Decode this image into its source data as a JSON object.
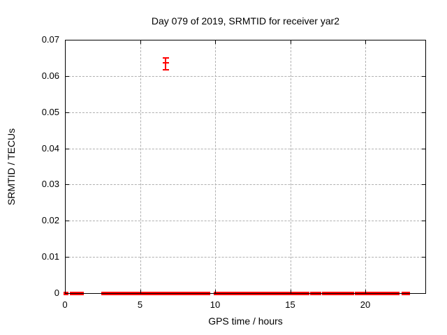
{
  "chart": {
    "title": "Day 079 of 2019, SRMTID for receiver yar2",
    "xlabel": "GPS time / hours",
    "ylabel": "SRMTID / TECUs"
  },
  "chart_data": {
    "type": "scatter",
    "style": "yerrorbars",
    "title": "Day 079 of 2019, SRMTID for receiver yar2",
    "xlabel": "GPS time / hours",
    "ylabel": "SRMTID / TECUs",
    "xlim": [
      0,
      24
    ],
    "ylim": [
      0,
      0.07
    ],
    "xticks": [
      0,
      5,
      10,
      15,
      20
    ],
    "xtick_labels": [
      "0",
      "5",
      "10",
      "15",
      "20"
    ],
    "yticks": [
      0,
      0.01,
      0.02,
      0.03,
      0.04,
      0.05,
      0.06,
      0.07
    ],
    "ytick_labels": [
      "0",
      "0.01",
      "0.02",
      "0.03",
      "0.04",
      "0.05",
      "0.06",
      "0.07"
    ],
    "grid": true,
    "grid_color": "#b0b0b0",
    "legend": "none",
    "series": [
      {
        "name": "SRMTID",
        "color": "#ff0000",
        "outlier_point": {
          "x": 6.7,
          "y": 0.0637,
          "y_low": 0.0617,
          "y_high": 0.0649
        },
        "baseline_value": 0,
        "baseline_segments_hours": [
          [
            0.0,
            0.12
          ],
          [
            0.4,
            0.65
          ],
          [
            0.85,
            0.95
          ],
          [
            1.05,
            1.15
          ],
          [
            2.5,
            2.8
          ],
          [
            2.95,
            3.2
          ],
          [
            3.3,
            3.58
          ],
          [
            3.67,
            3.82
          ],
          [
            4.0,
            4.25
          ],
          [
            4.42,
            4.6
          ],
          [
            4.65,
            4.75
          ],
          [
            4.93,
            5.02
          ],
          [
            5.12,
            5.21
          ],
          [
            5.26,
            5.58
          ],
          [
            5.67,
            5.81
          ],
          [
            5.9,
            6.19
          ],
          [
            6.28,
            6.42
          ],
          [
            6.51,
            6.88
          ],
          [
            7.07,
            7.3
          ],
          [
            7.35,
            7.9
          ],
          [
            8.0,
            8.14
          ],
          [
            8.23,
            8.47
          ],
          [
            8.6,
            8.84
          ],
          [
            8.93,
            9.6
          ],
          [
            10.0,
            10.55
          ],
          [
            10.7,
            11.45
          ],
          [
            11.6,
            12.3
          ],
          [
            12.42,
            12.8
          ],
          [
            12.93,
            13.1
          ],
          [
            13.25,
            13.4
          ],
          [
            13.52,
            14.15
          ],
          [
            14.28,
            14.42
          ],
          [
            14.55,
            14.8
          ],
          [
            14.93,
            15.1
          ],
          [
            15.2,
            15.35
          ],
          [
            15.5,
            15.65
          ],
          [
            15.8,
            16.2
          ],
          [
            16.4,
            16.75
          ],
          [
            16.88,
            17.0
          ],
          [
            17.2,
            17.4
          ],
          [
            17.5,
            17.7
          ],
          [
            17.8,
            18.4
          ],
          [
            18.5,
            18.9
          ],
          [
            19.05,
            19.15
          ],
          [
            19.4,
            19.9
          ],
          [
            20.0,
            20.2
          ],
          [
            20.3,
            20.5
          ],
          [
            20.62,
            20.75
          ],
          [
            20.85,
            21.2
          ],
          [
            21.3,
            21.4
          ],
          [
            21.5,
            21.8
          ],
          [
            22.0,
            22.2
          ],
          [
            22.5,
            22.9
          ]
        ]
      }
    ]
  }
}
